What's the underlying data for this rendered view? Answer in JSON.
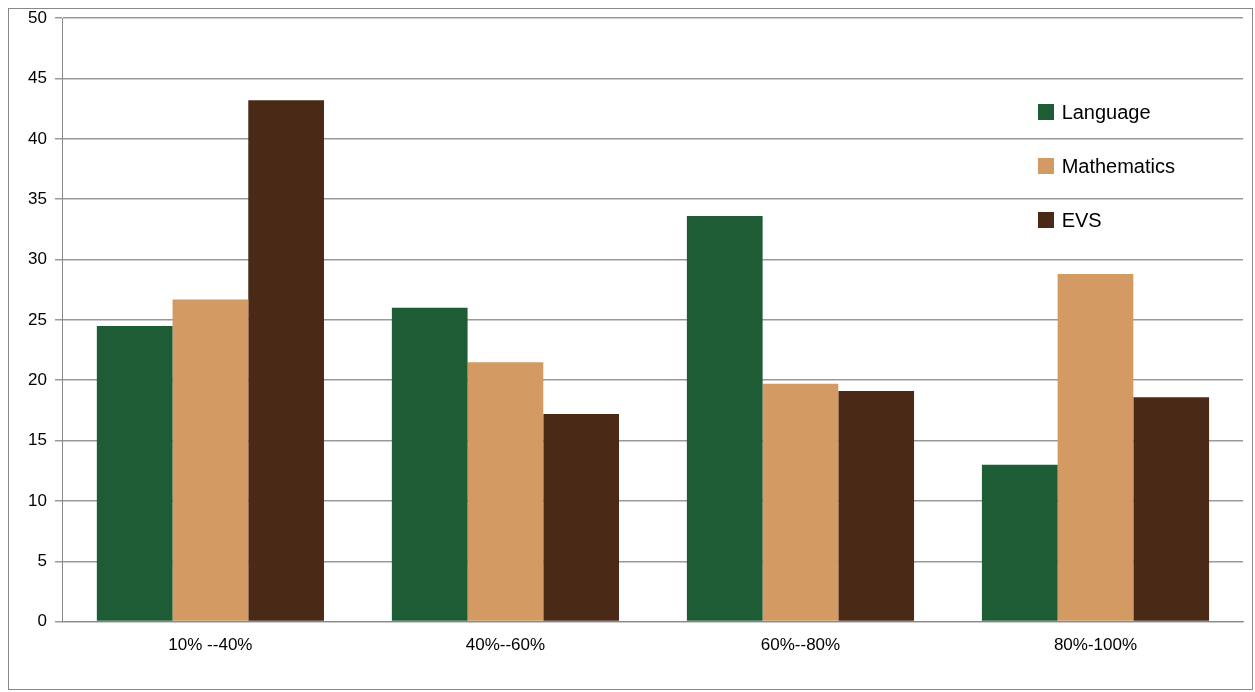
{
  "chart_data": {
    "type": "bar",
    "categories": [
      "10% --40%",
      "40%--60%",
      "60%--80%",
      "80%-100%"
    ],
    "series": [
      {
        "name": "Language",
        "color": "#1e5c36",
        "values": [
          24.5,
          26,
          33.6,
          13
        ]
      },
      {
        "name": "Mathematics",
        "color": "#d49a63",
        "values": [
          26.7,
          21.5,
          19.7,
          28.8
        ]
      },
      {
        "name": "EVS",
        "color": "#4a2a17",
        "values": [
          43.2,
          17.2,
          19.1,
          18.6
        ]
      }
    ],
    "ylim": [
      0,
      50
    ],
    "yticks": [
      0,
      5,
      10,
      15,
      20,
      25,
      30,
      35,
      40,
      45,
      50
    ],
    "grid": "y",
    "legend": "top right"
  }
}
